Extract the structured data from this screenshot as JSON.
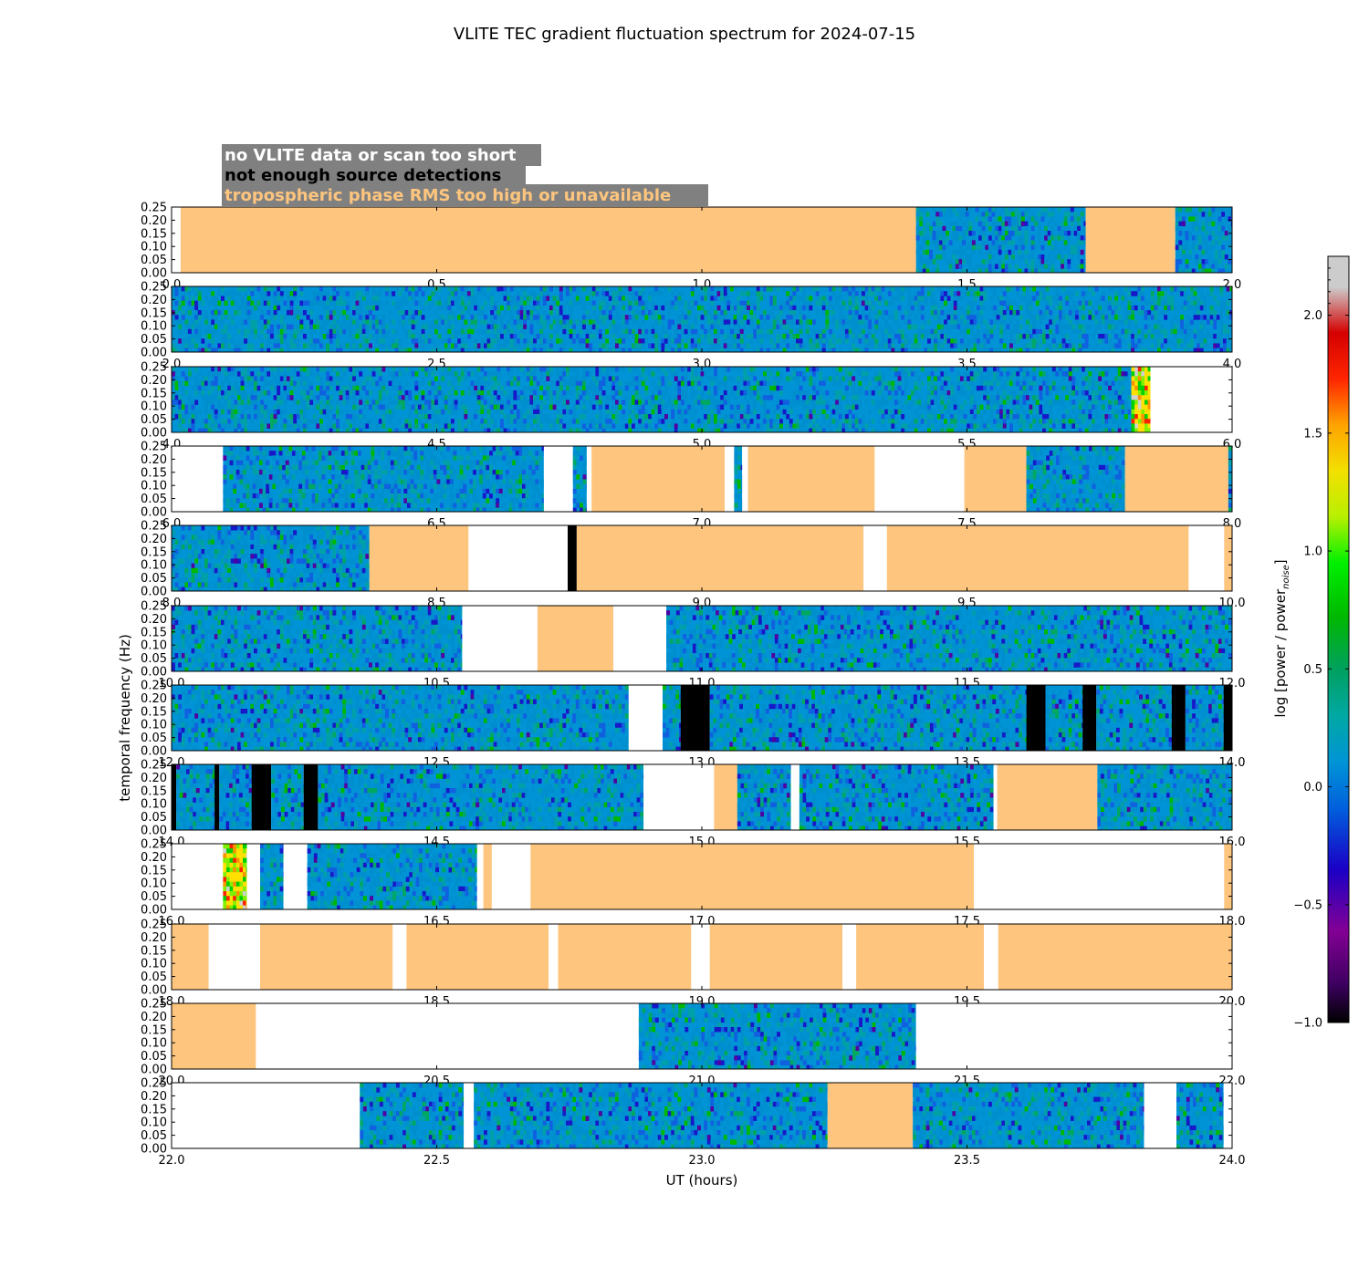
{
  "chart_data": {
    "type": "heatmap",
    "title": "VLITE TEC gradient fluctuation spectrum for 2024-07-15",
    "xlabel": "UT (hours)",
    "ylabel": "temporal frequency (Hz)",
    "ylim": [
      0,
      0.25
    ],
    "y_ticks": [
      "0.00",
      "0.05",
      "0.10",
      "0.15",
      "0.20",
      "0.25"
    ],
    "colorbar": {
      "label": "log [power / power",
      "label_subscript": "noise",
      "label_close": "]",
      "range": [
        -1.0,
        2.25
      ],
      "ticks": [
        {
          "value": -1.0,
          "label": "−1.0"
        },
        {
          "value": -0.5,
          "label": "−0.5"
        },
        {
          "value": 0.0,
          "label": "0.0"
        },
        {
          "value": 0.5,
          "label": "0.5"
        },
        {
          "value": 1.0,
          "label": "1.0"
        },
        {
          "value": 1.5,
          "label": "1.5"
        },
        {
          "value": 2.0,
          "label": "2.0"
        }
      ]
    },
    "legend": {
      "position": "top-left",
      "background": "#808080",
      "entries": [
        {
          "label": "no VLITE data or scan too short",
          "color": "#ffffff"
        },
        {
          "label": "not enough source detections",
          "color": "#000000"
        },
        {
          "label": "tropospheric phase RMS too high or unavailable",
          "color": "#fdc57e"
        }
      ]
    },
    "colors": {
      "no_data": "#ffffff",
      "few_detections": "#000000",
      "tropo": "#fdc57e"
    },
    "rows": [
      {
        "range": [
          0,
          2
        ],
        "x_ticks": [
          "0.0",
          "0.5",
          "1.0",
          "1.5",
          "2.0"
        ],
        "segments": [
          [
            "none",
            0,
            0.017
          ],
          [
            "tropo",
            0.017,
            1.404
          ],
          [
            "data",
            1.404,
            1.724
          ],
          [
            "tropo",
            1.724,
            1.893
          ],
          [
            "data",
            1.893,
            2.0
          ]
        ]
      },
      {
        "range": [
          2,
          4
        ],
        "x_ticks": [
          "2.0",
          "2.5",
          "3.0",
          "3.5",
          "4.0"
        ],
        "segments": [
          [
            "data",
            2.0,
            4.0
          ]
        ]
      },
      {
        "range": [
          4,
          6
        ],
        "x_ticks": [
          "4.0",
          "4.5",
          "5.0",
          "5.5",
          "6.0"
        ],
        "segments": [
          [
            "data",
            4.0,
            5.81
          ],
          [
            "hot",
            5.81,
            5.846
          ],
          [
            "none",
            5.846,
            6.0
          ]
        ]
      },
      {
        "range": [
          6,
          8
        ],
        "x_ticks": [
          "6.0",
          "6.5",
          "7.0",
          "7.5",
          "8.0"
        ],
        "segments": [
          [
            "none",
            6.0,
            6.097
          ],
          [
            "data",
            6.097,
            6.702
          ],
          [
            "none",
            6.702,
            6.757
          ],
          [
            "data",
            6.757,
            6.783
          ],
          [
            "none",
            6.783,
            6.792
          ],
          [
            "tropo",
            6.792,
            7.043
          ],
          [
            "none",
            7.043,
            7.061
          ],
          [
            "data",
            7.061,
            7.076
          ],
          [
            "none",
            7.076,
            7.087
          ],
          [
            "tropo",
            7.087,
            7.326
          ],
          [
            "none",
            7.326,
            7.495
          ],
          [
            "tropo",
            7.495,
            7.612
          ],
          [
            "data",
            7.612,
            7.798
          ],
          [
            "tropo",
            7.798,
            7.993
          ],
          [
            "data",
            7.993,
            8.0
          ]
        ]
      },
      {
        "range": [
          8,
          10
        ],
        "x_ticks": [
          "8.0",
          "8.5",
          "9.0",
          "9.5",
          "10.0"
        ],
        "segments": [
          [
            "data",
            8.0,
            8.373
          ],
          [
            "tropo",
            8.373,
            8.56
          ],
          [
            "none",
            8.56,
            8.747
          ],
          [
            "few",
            8.747,
            8.764
          ],
          [
            "tropo",
            8.764,
            9.305
          ],
          [
            "none",
            9.305,
            9.349
          ],
          [
            "tropo",
            9.349,
            9.918
          ],
          [
            "none",
            9.918,
            9.985
          ],
          [
            "tropo",
            9.985,
            10.0
          ]
        ]
      },
      {
        "range": [
          10,
          12
        ],
        "x_ticks": [
          "10.0",
          "10.5",
          "11.0",
          "11.5",
          "12.0"
        ],
        "segments": [
          [
            "data",
            10.0,
            10.548
          ],
          [
            "none",
            10.548,
            10.69
          ],
          [
            "tropo",
            10.69,
            10.833
          ],
          [
            "none",
            10.833,
            10.933
          ],
          [
            "data",
            10.933,
            12.0
          ]
        ]
      },
      {
        "range": [
          12,
          14
        ],
        "x_ticks": [
          "12.0",
          "12.5",
          "13.0",
          "13.5",
          "14.0"
        ],
        "segments": [
          [
            "data",
            12.0,
            12.862
          ],
          [
            "none",
            12.862,
            12.926
          ],
          [
            "data",
            12.926,
            12.96
          ],
          [
            "few",
            12.96,
            13.015
          ],
          [
            "data",
            13.015,
            13.612
          ],
          [
            "few",
            13.612,
            13.648
          ],
          [
            "data",
            13.648,
            13.718
          ],
          [
            "few",
            13.718,
            13.744
          ],
          [
            "data",
            13.744,
            13.886
          ],
          [
            "few",
            13.886,
            13.912
          ],
          [
            "data",
            13.912,
            13.984
          ],
          [
            "few",
            13.984,
            14.0
          ]
        ]
      },
      {
        "range": [
          14,
          16
        ],
        "x_ticks": [
          "14.0",
          "14.5",
          "15.0",
          "15.5",
          "16.0"
        ],
        "segments": [
          [
            "few",
            14.0,
            14.009
          ],
          [
            "data",
            14.009,
            14.081
          ],
          [
            "few",
            14.081,
            14.09
          ],
          [
            "data",
            14.09,
            14.151
          ],
          [
            "few",
            14.151,
            14.188
          ],
          [
            "data",
            14.188,
            14.249
          ],
          [
            "few",
            14.249,
            14.276
          ],
          [
            "data",
            14.276,
            14.89
          ],
          [
            "none",
            14.89,
            15.023
          ],
          [
            "tropo",
            15.023,
            15.067
          ],
          [
            "data",
            15.067,
            15.168
          ],
          [
            "none",
            15.168,
            15.184
          ],
          [
            "data",
            15.184,
            15.55
          ],
          [
            "none",
            15.55,
            15.557
          ],
          [
            "tropo",
            15.557,
            15.746
          ],
          [
            "data",
            15.746,
            16.0
          ]
        ]
      },
      {
        "range": [
          16,
          18
        ],
        "x_ticks": [
          "16.0",
          "16.5",
          "17.0",
          "17.5",
          "18.0"
        ],
        "segments": [
          [
            "none",
            16.0,
            16.097
          ],
          [
            "hot",
            16.097,
            16.142
          ],
          [
            "none",
            16.142,
            16.167
          ],
          [
            "data",
            16.167,
            16.211
          ],
          [
            "none",
            16.211,
            16.256
          ],
          [
            "data",
            16.256,
            16.576
          ],
          [
            "none",
            16.576,
            16.588
          ],
          [
            "tropo",
            16.588,
            16.604
          ],
          [
            "none",
            16.604,
            16.677
          ],
          [
            "tropo",
            16.677,
            17.513
          ],
          [
            "none",
            17.513,
            17.985
          ],
          [
            "tropo",
            17.985,
            18.0
          ]
        ]
      },
      {
        "range": [
          18,
          20
        ],
        "x_ticks": [
          "18.0",
          "18.5",
          "19.0",
          "19.5",
          "20.0"
        ],
        "segments": [
          [
            "tropo",
            18.0,
            18.07
          ],
          [
            "none",
            18.07,
            18.167
          ],
          [
            "tropo",
            18.167,
            18.417
          ],
          [
            "none",
            18.417,
            18.443
          ],
          [
            "tropo",
            18.443,
            18.711
          ],
          [
            "none",
            18.711,
            18.729
          ],
          [
            "tropo",
            18.729,
            18.98
          ],
          [
            "none",
            18.98,
            19.015
          ],
          [
            "tropo",
            19.015,
            19.265
          ],
          [
            "none",
            19.265,
            19.291
          ],
          [
            "tropo",
            19.291,
            19.532
          ],
          [
            "none",
            19.532,
            19.559
          ],
          [
            "tropo",
            19.559,
            20.0
          ]
        ]
      },
      {
        "range": [
          20,
          22
        ],
        "x_ticks": [
          "20.0",
          "20.5",
          "21.0",
          "21.5",
          "22.0"
        ],
        "segments": [
          [
            "tropo",
            20.0,
            20.159
          ],
          [
            "none",
            20.159,
            20.881
          ],
          [
            "data",
            20.881,
            21.404
          ],
          [
            "none",
            21.404,
            22.0
          ]
        ]
      },
      {
        "range": [
          22,
          24
        ],
        "x_ticks": [
          "22.0",
          "22.5",
          "23.0",
          "23.5",
          "24.0"
        ],
        "segments": [
          [
            "none",
            22.0,
            22.355
          ],
          [
            "data",
            22.355,
            22.551
          ],
          [
            "none",
            22.551,
            22.57
          ],
          [
            "data",
            22.57,
            23.237
          ],
          [
            "tropo",
            23.237,
            23.398
          ],
          [
            "data",
            23.398,
            23.834
          ],
          [
            "none",
            23.834,
            23.895
          ],
          [
            "data",
            23.895,
            23.984
          ],
          [
            "none",
            23.984,
            24.0
          ]
        ]
      }
    ]
  }
}
